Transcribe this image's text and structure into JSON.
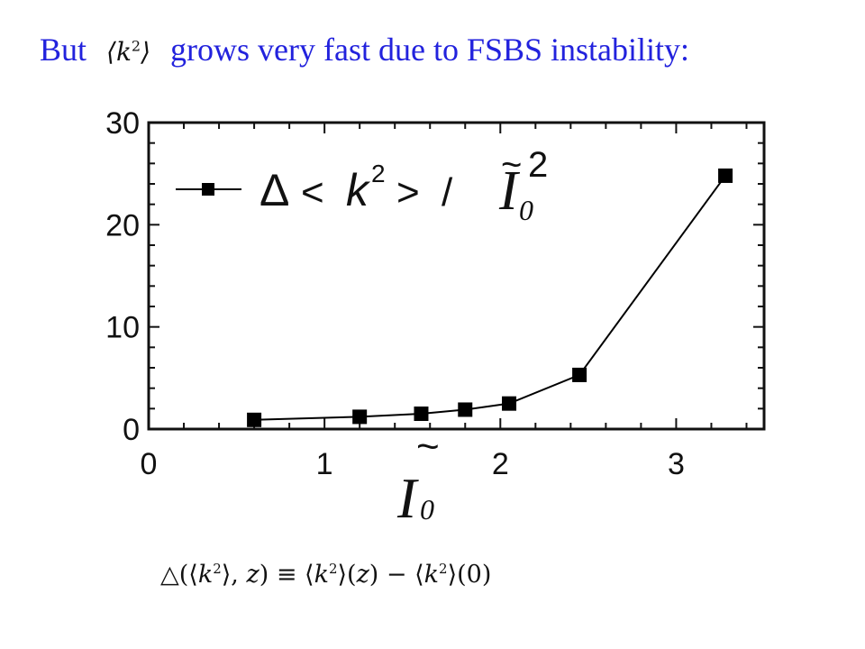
{
  "headline": {
    "prefix": "But",
    "math_k": "k",
    "math_exp": "2",
    "suffix": "grows very fast due to FSBS instability:"
  },
  "formula": {
    "text_1": "△(⟨",
    "k": "k",
    "exp": "2",
    "text_2": "⟩, ",
    "z": "z",
    "text_3": ") ≡ ⟨",
    "text_4": "⟩(",
    "text_5": ") − ⟨",
    "text_6": "⟩(0)"
  },
  "chart_data": {
    "type": "line",
    "x": [
      0.6,
      1.2,
      1.55,
      1.8,
      2.05,
      2.45,
      3.28
    ],
    "series": [
      {
        "name": "Δ < k² > / Ĩ₀²",
        "values": [
          0.9,
          1.2,
          1.5,
          1.9,
          2.5,
          5.3,
          24.8
        ]
      }
    ],
    "xlabel": "Ĩ₀",
    "ylabel": "",
    "xlim": [
      0,
      3.5
    ],
    "ylim": [
      0,
      30
    ],
    "x_ticks": [
      "0",
      "1",
      "2",
      "3"
    ],
    "y_ticks": [
      "0",
      "10",
      "20",
      "30"
    ],
    "legend": {
      "position": "top-left",
      "delta": "Δ",
      "lt": "<",
      "k": "k",
      "exp": "2",
      "gt": ">",
      "slash": "/",
      "i0_base": "I",
      "i0_sub": "0",
      "tilde": "~",
      "i0_exp": "2"
    },
    "axis_var": {
      "base": "I",
      "sub": "0",
      "tilde": "~"
    },
    "grid": false,
    "colors": {
      "line": "#000000",
      "marker": "#000000"
    }
  }
}
